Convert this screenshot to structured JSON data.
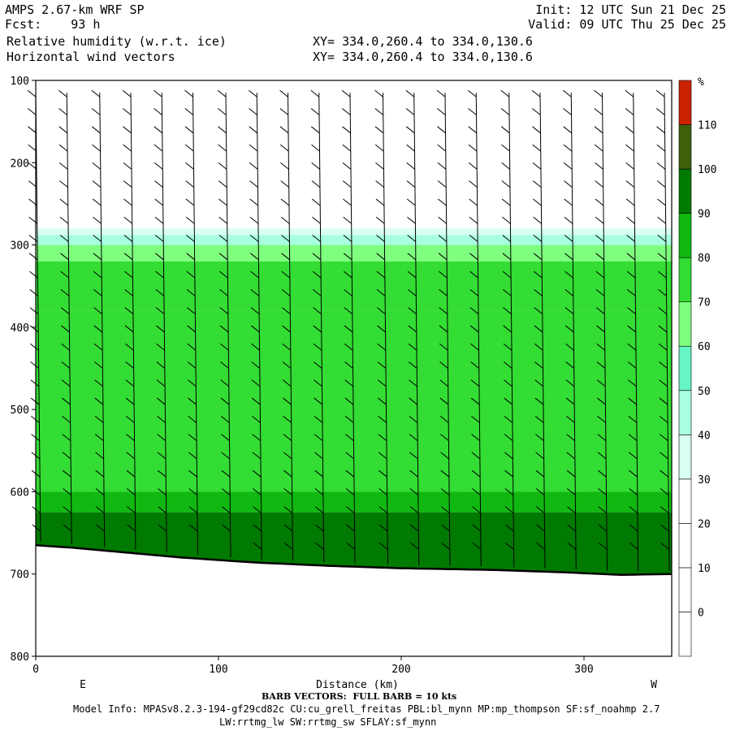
{
  "header": {
    "model": "AMPS 2.67-km WRF SP",
    "fcst": "Fcst:    93 h",
    "field1": "Relative humidity (w.r.t. ice)",
    "field2": "Horizontal wind vectors",
    "init": "Init: 12 UTC Sun 21 Dec 25",
    "valid": "Valid: 09 UTC Thu 25 Dec 25",
    "xy1": "XY= 334.0,260.4 to 334.0,130.6",
    "xy2": "XY= 334.0,260.4 to 334.0,130.6"
  },
  "footer": {
    "barb_note": "BARB VECTORS:  FULL BARB = 10 kts",
    "model_info": "Model Info: MPASv8.2.3-194-gf29cd82c CU:cu_grell_freitas PBL:bl_mynn MP:mp_thompson SF:sf_noahmp 2.7",
    "model_info2": "LW:rrtmg_lw SW:rrtmg_sw SFLAY:sf_mynn"
  },
  "chart_data": {
    "type": "heatmap",
    "xlabel": "Distance (km)",
    "ylabel": "",
    "x_left_label": "E",
    "x_right_label": "W",
    "xlim": [
      0,
      348
    ],
    "ylim": [
      800,
      100
    ],
    "x_ticks": [
      0,
      100,
      200,
      300
    ],
    "y_ticks": [
      100,
      200,
      300,
      400,
      500,
      600,
      700,
      800
    ],
    "colorbar": {
      "unit": "%",
      "levels": [
        0,
        10,
        20,
        30,
        40,
        50,
        60,
        70,
        80,
        90,
        100,
        110
      ],
      "colors": [
        "#ffffff",
        "#ffffff",
        "#ffffff",
        "#ffffff",
        "#d8fff2",
        "#a8ffe0",
        "#66f5c4",
        "#7fff7f",
        "#33dd33",
        "#11b811",
        "#007a00",
        "#3f5f0a",
        "#cc2200"
      ]
    },
    "terrain_pressure": [
      [
        0,
        665
      ],
      [
        20,
        668
      ],
      [
        50,
        674
      ],
      [
        80,
        680
      ],
      [
        120,
        686
      ],
      [
        160,
        690
      ],
      [
        200,
        693
      ],
      [
        250,
        695
      ],
      [
        290,
        698
      ],
      [
        320,
        701
      ],
      [
        348,
        700
      ]
    ],
    "rh_layers": [
      {
        "top": 280,
        "bottom": 288,
        "rh": 35
      },
      {
        "top": 288,
        "bottom": 300,
        "rh": 45
      },
      {
        "top": 300,
        "bottom": 320,
        "rh": 65
      },
      {
        "top": 320,
        "bottom": 380,
        "rh": 75
      },
      {
        "top": 380,
        "bottom": 600,
        "rh": 70
      },
      {
        "top": 600,
        "bottom": 625,
        "rh": 85
      },
      {
        "top": 625,
        "bottom": 700,
        "rh": 95
      }
    ],
    "barb_columns_km": [
      0,
      17,
      35,
      52,
      69,
      86,
      104,
      121,
      138,
      155,
      172,
      190,
      207,
      224,
      241,
      259,
      276,
      293,
      310,
      327,
      344
    ]
  }
}
